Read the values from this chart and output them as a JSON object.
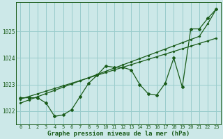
{
  "background_color": "#cce8e8",
  "grid_color": "#99cccc",
  "line_color": "#1a5c1a",
  "xlim": [
    -0.5,
    23.5
  ],
  "ylim": [
    1021.5,
    1026.1
  ],
  "yticks": [
    1022,
    1023,
    1024,
    1025
  ],
  "xticks": [
    0,
    1,
    2,
    3,
    4,
    5,
    6,
    7,
    8,
    9,
    10,
    11,
    12,
    13,
    14,
    15,
    16,
    17,
    18,
    19,
    20,
    21,
    22,
    23
  ],
  "xlabel": "Graphe pression niveau de la mer (hPa)",
  "series_actual": [
    1022.5,
    1022.5,
    1022.5,
    1022.3,
    1021.8,
    1021.85,
    1022.05,
    1022.55,
    1023.05,
    1023.35,
    1023.7,
    1023.65,
    1023.65,
    1023.55,
    1023.0,
    1022.65,
    1022.6,
    1023.05,
    1024.0,
    1022.9,
    1025.1,
    1025.1,
    1025.5,
    1025.85
  ],
  "series_line1": [
    1022.45,
    1022.55,
    1022.65,
    1022.75,
    1022.85,
    1022.95,
    1023.05,
    1023.15,
    1023.25,
    1023.35,
    1023.45,
    1023.55,
    1023.65,
    1023.75,
    1023.85,
    1023.95,
    1024.05,
    1024.15,
    1024.25,
    1024.35,
    1024.45,
    1024.55,
    1024.65,
    1024.75
  ],
  "series_line2": [
    1022.3,
    1022.42,
    1022.54,
    1022.66,
    1022.78,
    1022.9,
    1023.02,
    1023.14,
    1023.26,
    1023.38,
    1023.5,
    1023.62,
    1023.74,
    1023.86,
    1023.98,
    1024.1,
    1024.22,
    1024.34,
    1024.46,
    1024.58,
    1024.7,
    1024.82,
    1025.3,
    1025.85
  ],
  "marker": "D",
  "markersize": 2.0,
  "linewidth": 0.9,
  "tick_fontsize": 5.0,
  "label_fontsize": 6.5
}
